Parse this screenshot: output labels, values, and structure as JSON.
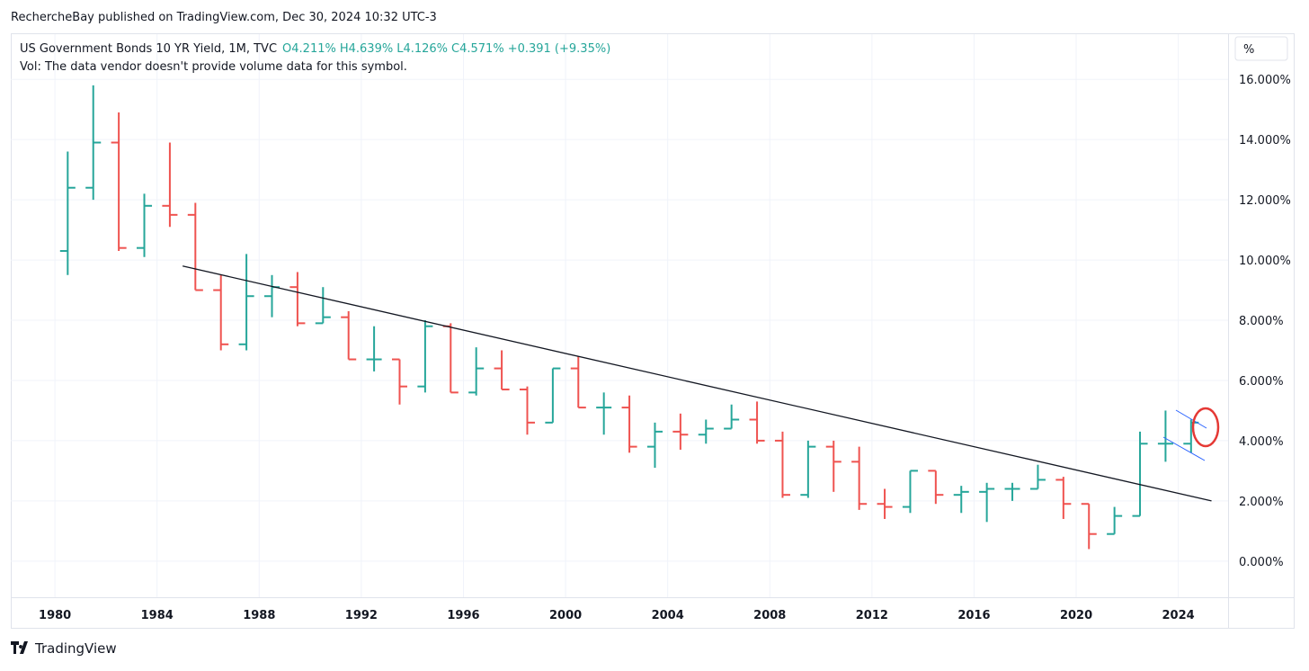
{
  "header": "RechercheBay published on TradingView.com, Dec 30, 2024 10:32 UTC-3",
  "footer": "TradingView",
  "chart_data": {
    "type": "ohlc",
    "title": "US Government Bonds 10 YR Yield, 1M, TVC",
    "legend_values": [
      "O4.211%",
      "H4.639%",
      "L4.126%",
      "C4.571%",
      "+0.391 (+9.35%)"
    ],
    "subtitle": "Vol: The data vendor doesn't provide volume data for this symbol.",
    "scale_button": "%",
    "up_color": "#26a69a",
    "down_color": "#ef5350",
    "x": [
      1980,
      1981,
      1982,
      1983,
      1984,
      1985,
      1986,
      1987,
      1988,
      1989,
      1990,
      1991,
      1992,
      1993,
      1994,
      1995,
      1996,
      1997,
      1998,
      1999,
      2000,
      2001,
      2002,
      2003,
      2004,
      2005,
      2006,
      2007,
      2008,
      2009,
      2010,
      2011,
      2012,
      2013,
      2014,
      2015,
      2016,
      2017,
      2018,
      2019,
      2020,
      2021,
      2022,
      2023,
      2024
    ],
    "open": [
      10.3,
      12.4,
      13.9,
      10.4,
      11.8,
      11.5,
      9.0,
      7.2,
      8.8,
      9.1,
      7.9,
      8.1,
      6.7,
      6.7,
      5.8,
      7.8,
      5.6,
      6.4,
      5.7,
      4.6,
      6.4,
      5.1,
      5.1,
      3.8,
      4.3,
      4.2,
      4.4,
      4.7,
      4.0,
      2.2,
      3.8,
      3.3,
      1.9,
      1.8,
      3.0,
      2.2,
      2.3,
      2.4,
      2.4,
      2.7,
      1.9,
      0.9,
      1.5,
      3.9,
      3.9
    ],
    "high": [
      13.6,
      15.8,
      14.9,
      12.2,
      13.9,
      11.9,
      9.5,
      10.2,
      9.5,
      9.6,
      9.1,
      8.3,
      7.8,
      6.7,
      8.0,
      7.9,
      7.1,
      7.0,
      5.8,
      6.4,
      6.8,
      5.6,
      5.5,
      4.6,
      4.9,
      4.7,
      5.2,
      5.3,
      4.3,
      4.0,
      4.0,
      3.8,
      2.4,
      3.0,
      3.0,
      2.5,
      2.6,
      2.6,
      3.2,
      2.8,
      1.9,
      1.8,
      4.3,
      5.0,
      4.7
    ],
    "low": [
      9.5,
      12.0,
      10.3,
      10.1,
      11.1,
      9.0,
      7.0,
      7.0,
      8.1,
      7.8,
      7.9,
      6.7,
      6.3,
      5.2,
      5.6,
      5.6,
      5.5,
      5.7,
      4.2,
      4.6,
      5.1,
      4.2,
      3.6,
      3.1,
      3.7,
      3.9,
      4.4,
      3.9,
      2.1,
      2.1,
      2.3,
      1.7,
      1.4,
      1.6,
      1.9,
      1.6,
      1.3,
      2.0,
      2.4,
      1.4,
      0.4,
      0.9,
      1.5,
      3.3,
      3.6
    ],
    "close": [
      12.4,
      13.9,
      10.4,
      11.8,
      11.5,
      9.0,
      7.2,
      8.8,
      9.1,
      7.9,
      8.1,
      6.7,
      6.7,
      5.8,
      7.8,
      5.6,
      6.4,
      5.7,
      4.6,
      6.4,
      5.1,
      5.1,
      3.8,
      4.3,
      4.2,
      4.4,
      4.7,
      4.0,
      2.2,
      3.8,
      3.3,
      1.9,
      1.8,
      3.0,
      2.2,
      2.3,
      2.4,
      2.4,
      2.7,
      1.9,
      0.9,
      1.5,
      3.9,
      3.9,
      4.6
    ],
    "trendline": {
      "x": [
        1985,
        2025.3
      ],
      "y": [
        9.8,
        2.0
      ]
    },
    "xlim": [
      1978.27,
      2025.95
    ],
    "ylim": [
      -1.2,
      17.5
    ],
    "xticks": [
      1980,
      1984,
      1988,
      1992,
      1996,
      2000,
      2004,
      2008,
      2012,
      2016,
      2020,
      2024
    ],
    "yticks": [
      {
        "value": 0,
        "label": "0.000%"
      },
      {
        "value": 2,
        "label": "2.000%"
      },
      {
        "value": 4,
        "label": "4.000%"
      },
      {
        "value": 6,
        "label": "6.000%"
      },
      {
        "value": 8,
        "label": "8.000%"
      },
      {
        "value": 10,
        "label": "10.000%"
      },
      {
        "value": 12,
        "label": "12.000%"
      },
      {
        "value": 14,
        "label": "14.000%"
      },
      {
        "value": 16,
        "label": "16.000%"
      }
    ],
    "grid": true
  }
}
